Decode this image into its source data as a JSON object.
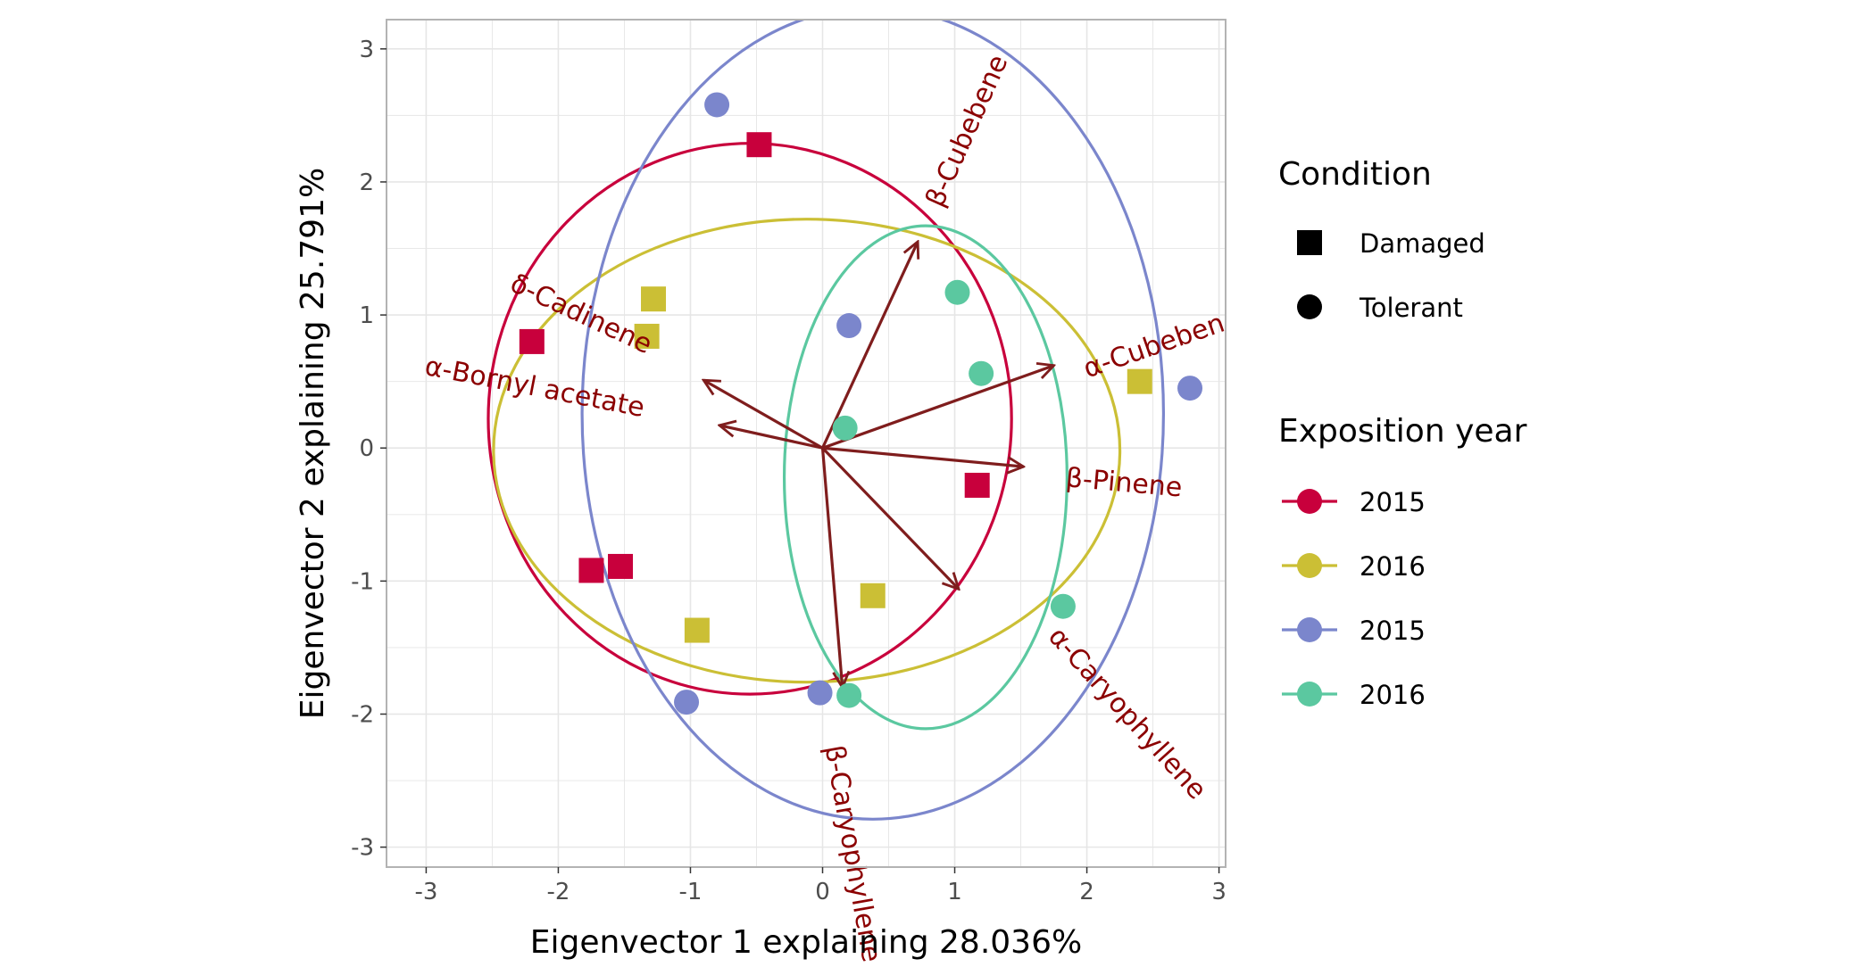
{
  "chart_data": {
    "type": "scatter",
    "title": "",
    "xlabel": "Eigenvector 1 explaining 28.036%",
    "ylabel": "Eigenvector 2 explaining 25.791%",
    "xlim": [
      -3.3,
      3.05
    ],
    "ylim": [
      -3.15,
      3.22
    ],
    "xticks": [
      -3,
      -2,
      -1,
      0,
      1,
      2,
      3
    ],
    "yticks": [
      -3,
      -2,
      -1,
      0,
      1,
      2,
      3
    ],
    "grid": true,
    "legend_position": "right",
    "colors": {
      "2015_damaged": "#c8003c",
      "2016_damaged": "#cbbf35",
      "2015_tolerant": "#7b86cc",
      "2016_tolerant": "#5bc8a0",
      "arrow": "#7f1d1d",
      "arrow_label": "#8b0000",
      "grid": "#e6e6e6",
      "panel_border": "#b3b3b3"
    },
    "legends": [
      {
        "title": "Condition",
        "items": [
          {
            "label": "Damaged",
            "shape": "square"
          },
          {
            "label": "Tolerant",
            "shape": "circle"
          }
        ]
      },
      {
        "title": "Exposition year",
        "items": [
          {
            "label": "2015",
            "color": "#c8003c"
          },
          {
            "label": "2016",
            "color": "#cbbf35"
          },
          {
            "label": "2015",
            "color": "#7b86cc"
          },
          {
            "label": "2016",
            "color": "#5bc8a0"
          }
        ]
      }
    ],
    "series": [
      {
        "group": "2015_damaged",
        "shape": "square",
        "color": "#c8003c",
        "points": [
          [
            -0.48,
            2.28
          ],
          [
            -2.2,
            0.8
          ],
          [
            -1.75,
            -0.92
          ],
          [
            -1.53,
            -0.89
          ],
          [
            1.17,
            -0.28
          ]
        ],
        "ellipse": {
          "cx": -0.55,
          "cy": 0.22,
          "rx": 1.98,
          "ry": 2.07,
          "angle": 0
        }
      },
      {
        "group": "2016_damaged",
        "shape": "square",
        "color": "#cbbf35",
        "points": [
          [
            -1.28,
            1.12
          ],
          [
            -1.33,
            0.84
          ],
          [
            -0.95,
            -1.37
          ],
          [
            0.38,
            -1.11
          ],
          [
            2.4,
            0.5
          ]
        ],
        "ellipse": {
          "cx": -0.12,
          "cy": -0.02,
          "rx": 2.37,
          "ry": 1.74,
          "angle": 0
        }
      },
      {
        "group": "2015_tolerant",
        "shape": "circle",
        "color": "#7b86cc",
        "points": [
          [
            -0.8,
            2.58
          ],
          [
            0.2,
            0.92
          ],
          [
            -1.03,
            -1.91
          ],
          [
            -0.02,
            -1.84
          ],
          [
            2.78,
            0.45
          ]
        ],
        "ellipse": {
          "cx": 0.38,
          "cy": 0.26,
          "rx": 2.2,
          "ry": 3.05,
          "angle": 0
        }
      },
      {
        "group": "2016_tolerant",
        "shape": "circle",
        "color": "#5bc8a0",
        "points": [
          [
            1.02,
            1.17
          ],
          [
            1.2,
            0.56
          ],
          [
            0.17,
            0.15
          ],
          [
            0.2,
            -1.86
          ],
          [
            1.82,
            -1.19
          ]
        ],
        "ellipse": {
          "cx": 0.78,
          "cy": -0.22,
          "rx": 1.07,
          "ry": 1.89,
          "angle": 0
        }
      }
    ],
    "arrows": [
      {
        "label": "β-Cubebene",
        "x": 0.72,
        "y": 1.55,
        "label_x": 1.1,
        "label_y": 2.38,
        "rotate": -66,
        "clip": false
      },
      {
        "label": "α-Cubebene",
        "x": 1.75,
        "y": 0.62,
        "label_x": 2.57,
        "label_y": 0.78,
        "rotate": -19,
        "clip": true
      },
      {
        "label": "β-Pinene",
        "x": 1.52,
        "y": -0.14,
        "label_x": 2.28,
        "label_y": -0.27,
        "rotate": 5,
        "clip": false
      },
      {
        "label": "α-Caryophyllene",
        "x": 1.03,
        "y": -1.06,
        "label_x": 2.3,
        "label_y": -2.0,
        "rotate": 48,
        "clip": false
      },
      {
        "label": "β-Caryophyllene",
        "x": 0.15,
        "y": -1.8,
        "label_x": 0.22,
        "label_y": -3.05,
        "rotate": 80,
        "clip": true
      },
      {
        "label": "α-Bornyl acetate",
        "x": -0.78,
        "y": 0.17,
        "label_x": -2.18,
        "label_y": 0.45,
        "rotate": 11,
        "clip": false
      },
      {
        "label": "δ-Cadinene",
        "x": -0.9,
        "y": 0.51,
        "label_x": -1.83,
        "label_y": 1.0,
        "rotate": 25,
        "clip": false
      }
    ]
  }
}
